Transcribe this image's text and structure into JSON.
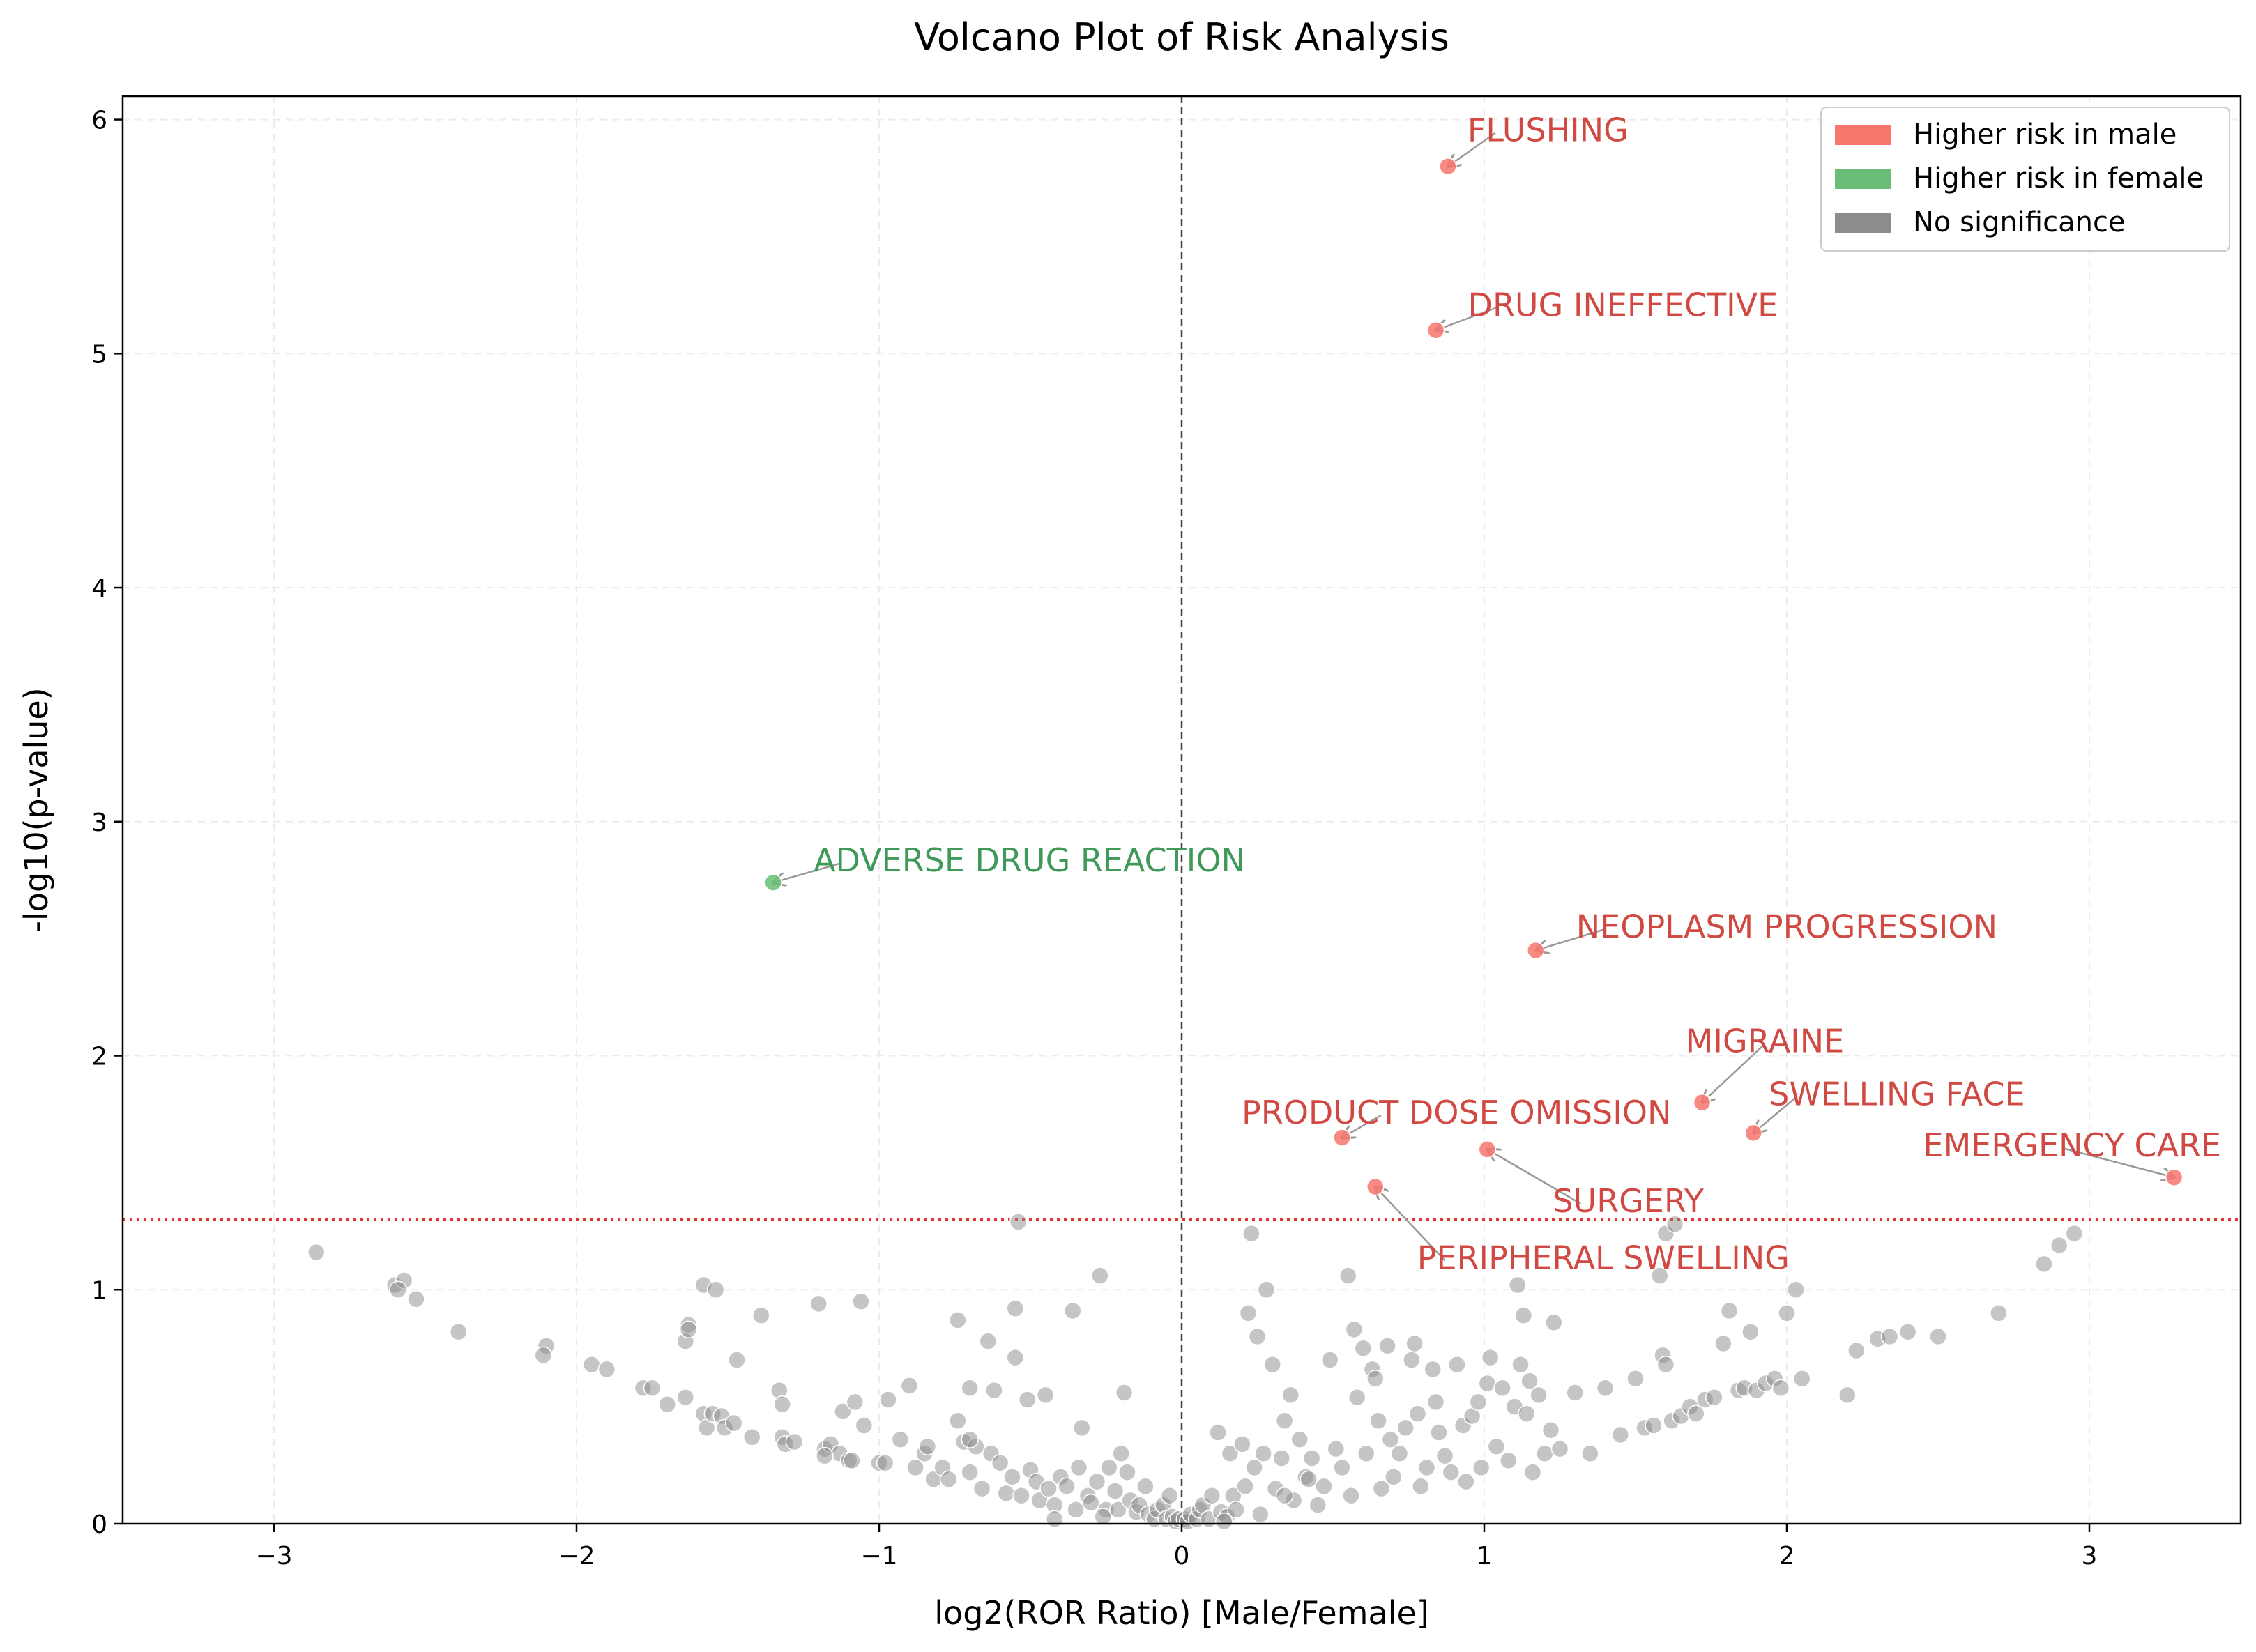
{
  "chart_data": {
    "type": "scatter",
    "title": "Volcano Plot of Risk Analysis",
    "xlabel": "log2(ROR Ratio) [Male/Female]",
    "ylabel": "-log10(p-value)",
    "xlim": [
      -3.5,
      3.5
    ],
    "ylim": [
      0,
      6.1
    ],
    "xticks": [
      -3,
      -2,
      -1,
      0,
      1,
      2,
      3
    ],
    "xtick_labels": [
      "−3",
      "−2",
      "−1",
      "0",
      "1",
      "2",
      "3"
    ],
    "yticks": [
      0,
      1,
      2,
      3,
      4,
      5,
      6
    ],
    "ytick_labels": [
      "0",
      "1",
      "2",
      "3",
      "4",
      "5",
      "6"
    ],
    "grid": true,
    "significance_threshold_y": 1.3,
    "zero_line_x": 0,
    "legend_position": "top-right",
    "colors": {
      "male": "#f8766d",
      "female": "#6abd76",
      "ns": "#8c8c8c",
      "male_text": "#d04a43",
      "female_text": "#3f9a5a",
      "threshold": "#e33333"
    },
    "legend": [
      {
        "label": "Higher risk in male",
        "color": "#f8766d"
      },
      {
        "label": "Higher risk in female",
        "color": "#6abd76"
      },
      {
        "label": "No significance",
        "color": "#8c8c8c"
      }
    ],
    "significant_points": [
      {
        "label": "FLUSHING",
        "x": 0.88,
        "y": 5.8,
        "group": "male"
      },
      {
        "label": "DRUG INEFFECTIVE",
        "x": 0.84,
        "y": 5.1,
        "group": "male"
      },
      {
        "label": "ADVERSE DRUG REACTION",
        "x": -1.35,
        "y": 2.74,
        "group": "female"
      },
      {
        "label": "NEOPLASM PROGRESSION",
        "x": 1.17,
        "y": 2.45,
        "group": "male"
      },
      {
        "label": "MIGRAINE",
        "x": 1.72,
        "y": 1.8,
        "group": "male"
      },
      {
        "label": "SWELLING FACE",
        "x": 1.89,
        "y": 1.67,
        "group": "male"
      },
      {
        "label": "PRODUCT DOSE OMISSION",
        "x": 0.53,
        "y": 1.65,
        "group": "male"
      },
      {
        "label": "SURGERY",
        "x": 1.01,
        "y": 1.6,
        "group": "male"
      },
      {
        "label": "EMERGENCY CARE",
        "x": 3.28,
        "y": 1.48,
        "group": "male"
      },
      {
        "label": "PERIPHERAL SWELLING",
        "x": 0.64,
        "y": 1.44,
        "group": "male"
      }
    ],
    "ns_points": [
      [
        -2.86,
        1.16
      ],
      [
        -2.6,
        1.02
      ],
      [
        -2.57,
        1.04
      ],
      [
        -2.59,
        1.0
      ],
      [
        -2.53,
        0.96
      ],
      [
        -2.39,
        0.82
      ],
      [
        -2.1,
        0.76
      ],
      [
        -2.11,
        0.72
      ],
      [
        -1.95,
        0.68
      ],
      [
        -1.9,
        0.66
      ],
      [
        -1.78,
        0.58
      ],
      [
        -1.75,
        0.58
      ],
      [
        -1.7,
        0.51
      ],
      [
        -1.64,
        0.54
      ],
      [
        -1.64,
        0.78
      ],
      [
        -1.63,
        0.85
      ],
      [
        -1.63,
        0.83
      ],
      [
        -1.58,
        1.02
      ],
      [
        -1.58,
        0.47
      ],
      [
        -1.57,
        0.41
      ],
      [
        -1.55,
        0.47
      ],
      [
        -1.54,
        1.0
      ],
      [
        -1.52,
        0.46
      ],
      [
        -1.51,
        0.41
      ],
      [
        -1.48,
        0.43
      ],
      [
        -1.47,
        0.7
      ],
      [
        -1.42,
        0.37
      ],
      [
        -1.39,
        0.89
      ],
      [
        -1.33,
        0.57
      ],
      [
        -1.32,
        0.51
      ],
      [
        -1.32,
        0.37
      ],
      [
        -1.31,
        0.34
      ],
      [
        -1.28,
        0.35
      ],
      [
        -1.2,
        0.94
      ],
      [
        -1.18,
        0.32
      ],
      [
        -1.16,
        0.34
      ],
      [
        -1.13,
        0.3
      ],
      [
        -1.12,
        0.48
      ],
      [
        -1.1,
        0.27
      ],
      [
        -1.09,
        0.27
      ],
      [
        -1.08,
        0.52
      ],
      [
        -1.06,
        0.95
      ],
      [
        -1.05,
        0.42
      ],
      [
        -1.0,
        0.26
      ],
      [
        -0.98,
        0.26
      ],
      [
        -0.97,
        0.53
      ],
      [
        -0.93,
        0.36
      ],
      [
        -0.9,
        0.59
      ],
      [
        -0.88,
        0.24
      ],
      [
        -0.85,
        0.3
      ],
      [
        -0.84,
        0.33
      ],
      [
        -0.82,
        0.19
      ],
      [
        -0.79,
        0.24
      ],
      [
        -0.77,
        0.19
      ],
      [
        -0.74,
        0.44
      ],
      [
        -0.74,
        0.87
      ],
      [
        -0.72,
        0.35
      ],
      [
        -0.7,
        0.58
      ],
      [
        -0.7,
        0.22
      ],
      [
        -0.68,
        0.33
      ],
      [
        -0.66,
        0.15
      ],
      [
        -0.64,
        0.78
      ],
      [
        -0.63,
        0.3
      ],
      [
        -0.62,
        0.57
      ],
      [
        -0.6,
        0.26
      ],
      [
        -0.58,
        0.13
      ],
      [
        -0.56,
        0.2
      ],
      [
        -0.55,
        0.92
      ],
      [
        -0.55,
        0.71
      ],
      [
        -0.54,
        1.29
      ],
      [
        -0.53,
        0.12
      ],
      [
        -0.51,
        0.53
      ],
      [
        -0.5,
        0.23
      ],
      [
        -0.48,
        0.18
      ],
      [
        -0.47,
        0.1
      ],
      [
        -0.45,
        0.55
      ],
      [
        -0.44,
        0.15
      ],
      [
        -0.42,
        0.08
      ],
      [
        -0.4,
        0.2
      ],
      [
        -0.38,
        0.16
      ],
      [
        -0.36,
        0.91
      ],
      [
        -0.35,
        0.06
      ],
      [
        -0.34,
        0.24
      ],
      [
        -0.33,
        0.41
      ],
      [
        -0.31,
        0.12
      ],
      [
        -0.3,
        0.09
      ],
      [
        -0.28,
        0.18
      ],
      [
        -0.27,
        1.06
      ],
      [
        -0.25,
        0.06
      ],
      [
        -0.24,
        0.24
      ],
      [
        -0.22,
        0.14
      ],
      [
        -0.21,
        0.06
      ],
      [
        -0.2,
        0.3
      ],
      [
        -0.19,
        0.56
      ],
      [
        -0.18,
        0.22
      ],
      [
        -0.17,
        0.1
      ],
      [
        -0.15,
        0.05
      ],
      [
        -0.14,
        0.08
      ],
      [
        -0.12,
        0.16
      ],
      [
        -0.11,
        0.04
      ],
      [
        -0.09,
        0.02
      ],
      [
        -0.08,
        0.06
      ],
      [
        -0.06,
        0.08
      ],
      [
        -0.05,
        0.02
      ],
      [
        -0.04,
        0.12
      ],
      [
        -0.03,
        0.03
      ],
      [
        -0.02,
        0.01
      ],
      [
        -0.01,
        0.02
      ],
      [
        0.01,
        0.02
      ],
      [
        0.02,
        0.01
      ],
      [
        0.03,
        0.04
      ],
      [
        0.05,
        0.02
      ],
      [
        0.06,
        0.06
      ],
      [
        0.07,
        0.08
      ],
      [
        0.09,
        0.02
      ],
      [
        0.1,
        0.12
      ],
      [
        0.12,
        0.39
      ],
      [
        0.13,
        0.05
      ],
      [
        0.15,
        0.03
      ],
      [
        0.16,
        0.3
      ],
      [
        0.17,
        0.12
      ],
      [
        0.18,
        0.06
      ],
      [
        0.2,
        0.34
      ],
      [
        0.21,
        0.16
      ],
      [
        0.22,
        0.9
      ],
      [
        0.23,
        1.24
      ],
      [
        0.24,
        0.24
      ],
      [
        0.25,
        0.8
      ],
      [
        0.26,
        0.04
      ],
      [
        0.27,
        0.3
      ],
      [
        0.28,
        1.0
      ],
      [
        0.3,
        0.68
      ],
      [
        0.31,
        0.15
      ],
      [
        0.33,
        0.28
      ],
      [
        0.34,
        0.44
      ],
      [
        0.36,
        0.55
      ],
      [
        0.37,
        0.1
      ],
      [
        0.39,
        0.36
      ],
      [
        0.41,
        0.2
      ],
      [
        0.43,
        0.28
      ],
      [
        0.45,
        0.08
      ],
      [
        0.47,
        0.16
      ],
      [
        0.49,
        0.7
      ],
      [
        0.51,
        0.32
      ],
      [
        0.53,
        0.24
      ],
      [
        0.55,
        1.06
      ],
      [
        0.56,
        0.12
      ],
      [
        0.57,
        0.83
      ],
      [
        0.58,
        0.54
      ],
      [
        0.6,
        0.75
      ],
      [
        0.61,
        0.3
      ],
      [
        0.63,
        0.66
      ],
      [
        0.64,
        0.62
      ],
      [
        0.65,
        0.44
      ],
      [
        0.66,
        0.15
      ],
      [
        0.68,
        0.76
      ],
      [
        0.69,
        0.36
      ],
      [
        0.7,
        0.2
      ],
      [
        0.72,
        0.3
      ],
      [
        0.74,
        0.41
      ],
      [
        0.76,
        0.7
      ],
      [
        0.77,
        0.77
      ],
      [
        0.78,
        0.47
      ],
      [
        0.79,
        0.16
      ],
      [
        0.81,
        0.24
      ],
      [
        0.83,
        0.66
      ],
      [
        0.84,
        0.52
      ],
      [
        0.85,
        0.39
      ],
      [
        0.87,
        0.29
      ],
      [
        0.89,
        0.22
      ],
      [
        0.91,
        0.68
      ],
      [
        0.93,
        0.42
      ],
      [
        0.94,
        0.18
      ],
      [
        0.96,
        0.46
      ],
      [
        0.98,
        0.52
      ],
      [
        0.99,
        0.24
      ],
      [
        1.01,
        0.6
      ],
      [
        1.02,
        0.71
      ],
      [
        1.04,
        0.33
      ],
      [
        1.06,
        0.58
      ],
      [
        1.08,
        0.27
      ],
      [
        1.1,
        0.5
      ],
      [
        1.11,
        1.02
      ],
      [
        1.12,
        0.68
      ],
      [
        1.13,
        0.89
      ],
      [
        1.14,
        0.47
      ],
      [
        1.15,
        0.61
      ],
      [
        1.16,
        0.22
      ],
      [
        1.18,
        0.55
      ],
      [
        1.2,
        0.3
      ],
      [
        1.22,
        0.4
      ],
      [
        1.23,
        0.86
      ],
      [
        1.25,
        0.32
      ],
      [
        1.3,
        0.56
      ],
      [
        1.35,
        0.3
      ],
      [
        1.4,
        0.58
      ],
      [
        1.45,
        0.38
      ],
      [
        1.5,
        0.62
      ],
      [
        1.53,
        0.41
      ],
      [
        1.56,
        0.42
      ],
      [
        1.58,
        1.06
      ],
      [
        1.59,
        0.72
      ],
      [
        1.6,
        0.68
      ],
      [
        1.62,
        0.44
      ],
      [
        1.65,
        0.46
      ],
      [
        1.68,
        0.5
      ],
      [
        1.7,
        0.47
      ],
      [
        1.73,
        0.53
      ],
      [
        1.76,
        0.54
      ],
      [
        1.79,
        0.77
      ],
      [
        1.81,
        0.91
      ],
      [
        1.84,
        0.57
      ],
      [
        1.86,
        0.58
      ],
      [
        1.88,
        0.82
      ],
      [
        1.9,
        0.57
      ],
      [
        1.93,
        0.6
      ],
      [
        1.96,
        0.62
      ],
      [
        1.98,
        0.58
      ],
      [
        2.0,
        0.9
      ],
      [
        2.03,
        1.0
      ],
      [
        2.05,
        0.62
      ],
      [
        2.2,
        0.55
      ],
      [
        2.23,
        0.74
      ],
      [
        2.3,
        0.79
      ],
      [
        2.34,
        0.8
      ],
      [
        2.4,
        0.82
      ],
      [
        2.5,
        0.8
      ],
      [
        2.7,
        0.9
      ],
      [
        2.85,
        1.11
      ],
      [
        2.9,
        1.19
      ],
      [
        2.95,
        1.24
      ],
      [
        1.6,
        1.24
      ],
      [
        1.63,
        1.28
      ],
      [
        -0.42,
        0.02
      ],
      [
        -0.26,
        0.03
      ],
      [
        0.14,
        0.01
      ],
      [
        0.34,
        0.12
      ],
      [
        -0.7,
        0.36
      ],
      [
        0.42,
        0.19
      ],
      [
        -1.18,
        0.29
      ]
    ]
  }
}
